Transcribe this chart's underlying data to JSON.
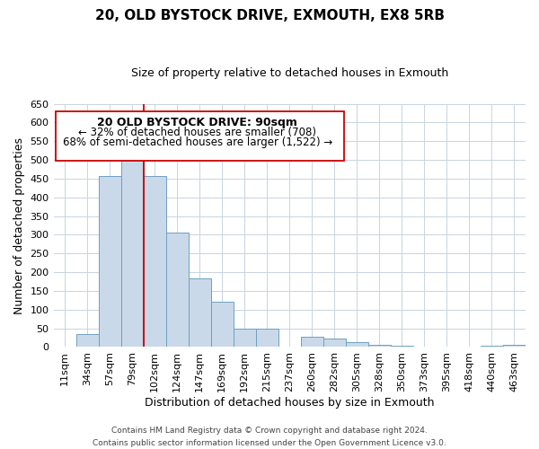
{
  "title": "20, OLD BYSTOCK DRIVE, EXMOUTH, EX8 5RB",
  "subtitle": "Size of property relative to detached houses in Exmouth",
  "xlabel": "Distribution of detached houses by size in Exmouth",
  "ylabel": "Number of detached properties",
  "bar_labels": [
    "11sqm",
    "34sqm",
    "57sqm",
    "79sqm",
    "102sqm",
    "124sqm",
    "147sqm",
    "169sqm",
    "192sqm",
    "215sqm",
    "237sqm",
    "260sqm",
    "282sqm",
    "305sqm",
    "328sqm",
    "350sqm",
    "373sqm",
    "395sqm",
    "418sqm",
    "440sqm",
    "463sqm"
  ],
  "bar_values": [
    0,
    35,
    457,
    515,
    457,
    305,
    183,
    120,
    50,
    50,
    0,
    28,
    22,
    13,
    5,
    3,
    2,
    0,
    0,
    3,
    7
  ],
  "bar_color": "#c9d9ea",
  "bar_edge_color": "#6fa0c0",
  "vline_x_idx": 4,
  "vline_color": "#cc0000",
  "ylim": [
    0,
    650
  ],
  "yticks": [
    0,
    50,
    100,
    150,
    200,
    250,
    300,
    350,
    400,
    450,
    500,
    550,
    600,
    650
  ],
  "annotation_title": "20 OLD BYSTOCK DRIVE: 90sqm",
  "annotation_line1": "← 32% of detached houses are smaller (708)",
  "annotation_line2": "68% of semi-detached houses are larger (1,522) →",
  "footer_line1": "Contains HM Land Registry data © Crown copyright and database right 2024.",
  "footer_line2": "Contains public sector information licensed under the Open Government Licence v3.0.",
  "background_color": "#ffffff",
  "grid_color": "#c8d4e0",
  "title_fontsize": 11,
  "subtitle_fontsize": 9,
  "xlabel_fontsize": 9,
  "ylabel_fontsize": 9,
  "tick_fontsize": 8,
  "ann_title_fontsize": 9,
  "ann_text_fontsize": 8.5,
  "footer_fontsize": 6.5
}
